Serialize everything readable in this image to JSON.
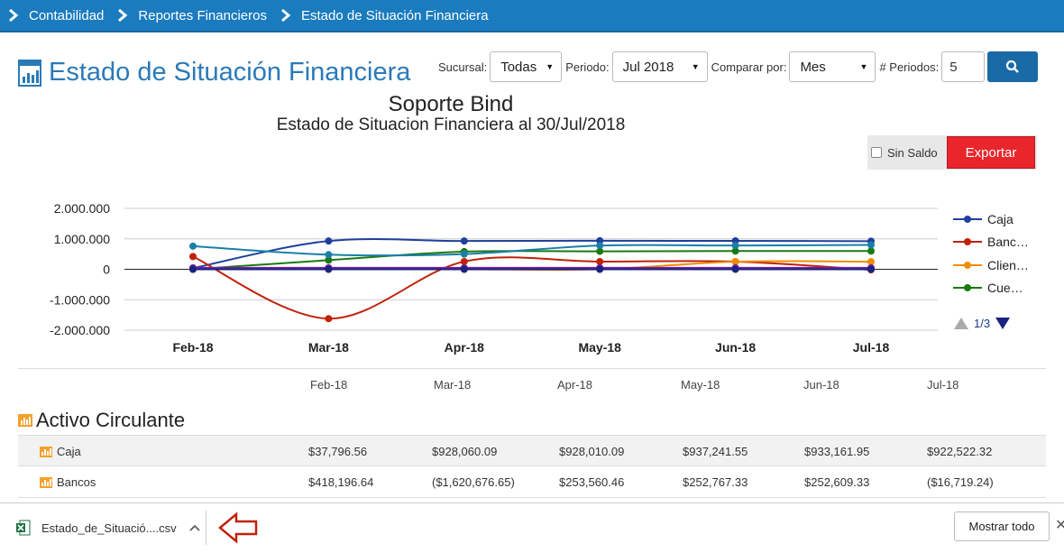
{
  "breadcrumb": [
    "Contabilidad",
    "Reportes Financieros",
    "Estado de Situación Financiera"
  ],
  "page": {
    "title": "Estado de Situación Financiera"
  },
  "filters": {
    "sucursal_label": "Sucursal:",
    "sucursal_value": "Todas",
    "periodo_label": "Periodo:",
    "periodo_value": "Jul 2018",
    "comparar_label": "Comparar por:",
    "comparar_value": "Mes",
    "periodos_label": "# Periodos:",
    "periodos_value": "5"
  },
  "toolbar": {
    "sin_saldo_label": "Sin Saldo",
    "export_label": "Exportar"
  },
  "pager": {
    "text": "1/3"
  },
  "colors": {
    "caja": "#1f3f9c",
    "bancos": "#c0220a",
    "clientes": "#f08c00",
    "cuentas": "#1a7a12",
    "teal": "#1a7fa8",
    "purple": "#7b1fa2"
  },
  "chart_data": {
    "type": "line",
    "title": "Soporte Bind",
    "subtitle": "Estado de Situacion Financiera al 30/Jul/2018",
    "categories": [
      "Feb-18",
      "Mar-18",
      "Apr-18",
      "May-18",
      "Jun-18",
      "Jul-18"
    ],
    "y_ticks": [
      "2.000.000",
      "1.000.000",
      "0",
      "-1.000.000",
      "-2.000.000"
    ],
    "ylim": [
      -2000000,
      2000000
    ],
    "legend_position": "right",
    "series": [
      {
        "name": "Caja",
        "color": "#1f3f9c",
        "values": [
          37796.56,
          928060.09,
          928010.09,
          937241.55,
          933161.95,
          922522.32
        ]
      },
      {
        "name": "Banc…",
        "color": "#c0220a",
        "values": [
          418196.64,
          -1620676.65,
          253560.46,
          252767.33,
          252609.33,
          -16719.24
        ]
      },
      {
        "name": "Clien…",
        "color": "#f08c00",
        "values": [
          0,
          0,
          0,
          0,
          250000,
          250000
        ]
      },
      {
        "name": "Cue…",
        "color": "#1a7a12",
        "values": [
          0,
          300000,
          580000,
          590000,
          600000,
          600000
        ]
      },
      {
        "color": "#1a7fa8",
        "values": [
          760000,
          480000,
          500000,
          780000,
          780000,
          800000
        ]
      },
      {
        "color": "#7b1fa2",
        "values": [
          50000,
          50000,
          50000,
          50000,
          50000,
          50000
        ]
      },
      {
        "color": "#1a237e",
        "values": [
          0,
          0,
          0,
          0,
          0,
          0
        ]
      }
    ]
  },
  "table": {
    "columns": [
      "Feb-18",
      "Mar-18",
      "Apr-18",
      "May-18",
      "Jun-18",
      "Jul-18"
    ],
    "section_title": "Activo Circulante",
    "rows": [
      {
        "name": "Caja",
        "values": [
          "$37,796.56",
          "$928,060.09",
          "$928,010.09",
          "$937,241.55",
          "$933,161.95",
          "$922,522.32"
        ]
      },
      {
        "name": "Bancos",
        "values": [
          "$418,196.64",
          "($1,620,676.65)",
          "$253,560.46",
          "$252,767.33",
          "$252,609.33",
          "($16,719.24)"
        ]
      }
    ]
  },
  "download_bar": {
    "file_name": "Estado_de_Situació....csv",
    "show_all_label": "Mostrar todo"
  }
}
